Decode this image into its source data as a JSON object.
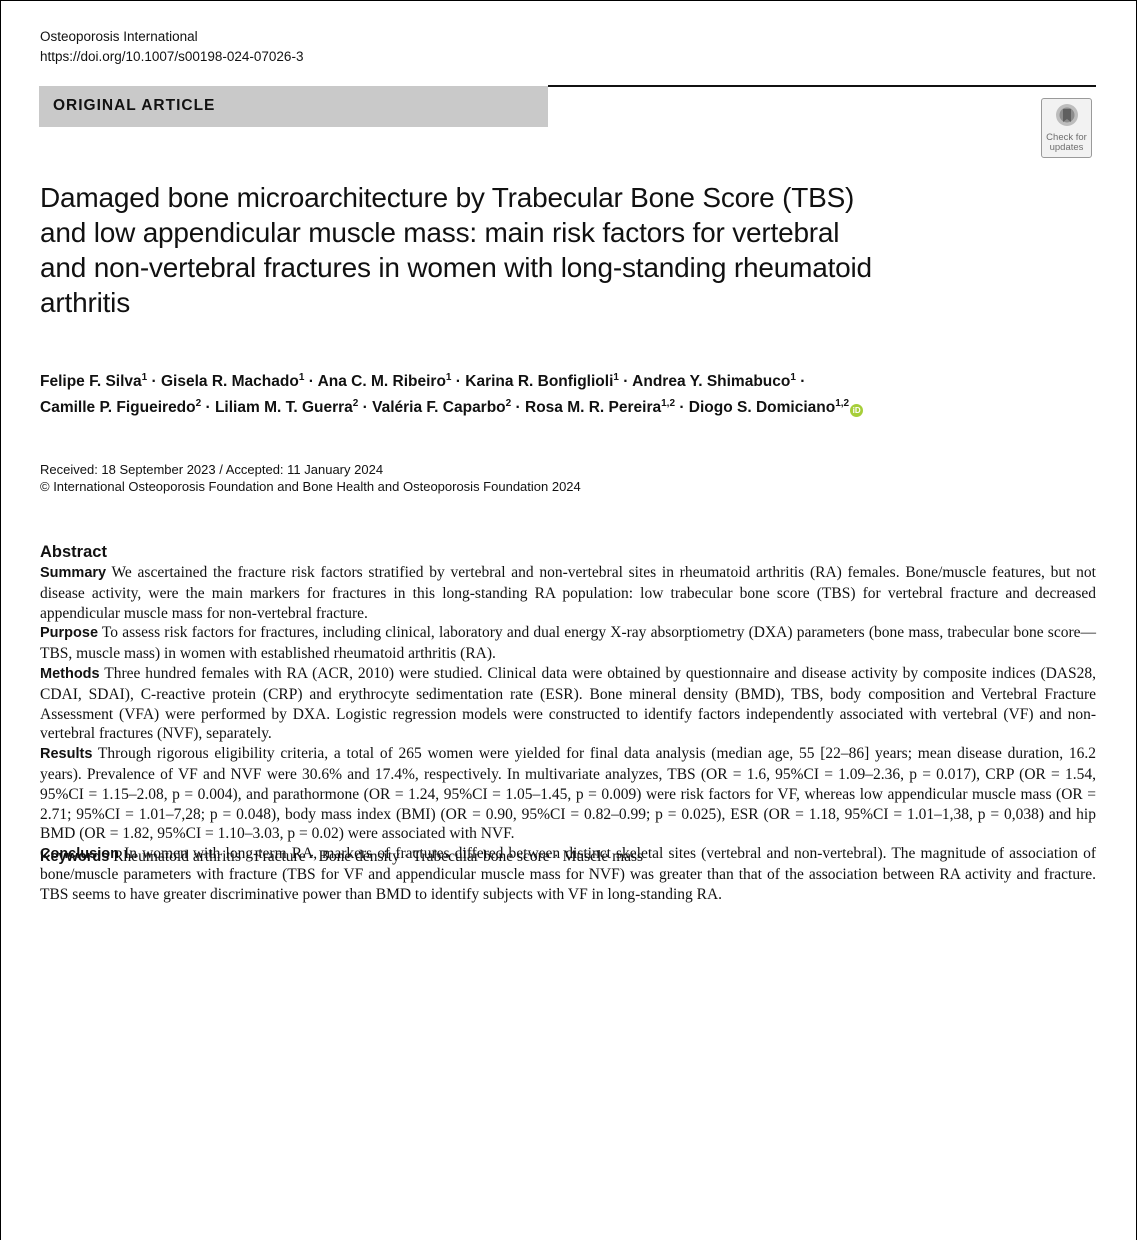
{
  "journal": {
    "name": "Osteoporosis International",
    "doi": "https://doi.org/10.1007/s00198-024-07026-3"
  },
  "article_type": "ORIGINAL ARTICLE",
  "check_updates": {
    "line1": "Check for",
    "line2": "updates",
    "icon": "bookmark-icon"
  },
  "title_lines": [
    "Damaged bone microarchitecture by Trabecular Bone Score (TBS)",
    "and low appendicular muscle mass: main risk factors for vertebral",
    "and non-vertebral fractures in women with long-standing rheumatoid",
    "arthritis"
  ],
  "authors": {
    "line1": [
      {
        "name": "Felipe F. Silva",
        "aff": "1"
      },
      {
        "name": "Gisela R. Machado",
        "aff": "1"
      },
      {
        "name": "Ana C. M. Ribeiro",
        "aff": "1"
      },
      {
        "name": "Karina R. Bonfiglioli",
        "aff": "1"
      },
      {
        "name": "Andrea Y. Shimabuco",
        "aff": "1"
      }
    ],
    "line2": [
      {
        "name": "Camille P. Figueiredo",
        "aff": "2"
      },
      {
        "name": "Liliam M. T. Guerra",
        "aff": "2"
      },
      {
        "name": "Valéria F. Caparbo",
        "aff": "2"
      },
      {
        "name": "Rosa M. R. Pereira",
        "aff": "1,2"
      },
      {
        "name": "Diogo S. Domiciano",
        "aff": "1,2"
      }
    ],
    "separator": " · ",
    "orcid_label": "iD"
  },
  "dates": {
    "received": "Received: 18 September 2023 / Accepted: 11 January 2024",
    "copyright": "© International Osteoporosis Foundation and Bone Health and Osteoporosis Foundation 2024"
  },
  "abstract": {
    "heading": "Abstract",
    "sections": [
      {
        "label": "Summary",
        "text": "We ascertained the fracture risk factors stratified by vertebral and non-vertebral sites in rheumatoid arthritis (RA) females. Bone/muscle features, but not disease activity, were the main markers for fractures in this long-standing RA population: low trabecular bone score (TBS) for vertebral fracture and decreased appendicular muscle mass for non-vertebral fracture."
      },
      {
        "label": "Purpose",
        "text": "To assess risk factors for fractures, including clinical, laboratory and dual energy X-ray absorptiometry (DXA) parameters (bone mass, trabecular bone score—TBS, muscle mass) in women with established rheumatoid arthritis (RA)."
      },
      {
        "label": "Methods",
        "text": "Three hundred females with RA (ACR, 2010) were studied. Clinical data were obtained by questionnaire and disease activity by composite indices (DAS28, CDAI, SDAI), C-reactive protein (CRP) and erythrocyte sedimentation rate (ESR). Bone mineral density (BMD), TBS, body composition and Vertebral Fracture Assessment (VFA) were performed by DXA. Logistic regression models were constructed to identify factors independently associated with vertebral (VF) and non-vertebral fractures (NVF), separately."
      },
      {
        "label": "Results",
        "text": "Through rigorous eligibility criteria, a total of 265 women were yielded for final data analysis (median age, 55 [22–86] years; mean disease duration, 16.2 years). Prevalence of VF and NVF were 30.6% and 17.4%, respectively. In multivariate analyzes, TBS (OR = 1.6, 95%CI = 1.09–2.36, p = 0.017), CRP (OR = 1.54, 95%CI = 1.15–2.08, p = 0.004), and parathormone (OR = 1.24, 95%CI = 1.05–1.45, p = 0.009) were risk factors for VF, whereas low appendicular muscle mass (OR = 2.71; 95%CI = 1.01–7,28; p = 0.048), body mass index (BMI) (OR = 0.90, 95%CI = 0.82–0.99; p = 0.025), ESR (OR = 1.18, 95%CI = 1.01–1,38, p = 0,038) and hip BMD (OR = 1.82, 95%CI = 1.10–3.03, p = 0.02) were associated with NVF."
      },
      {
        "label": "Conclusion",
        "text": "In women with long-term RA, markers of fractures differed between distinct skeletal sites (vertebral and non-vertebral). The magnitude of association of bone/muscle parameters with fracture (TBS for VF and appendicular muscle mass for NVF) was greater than that of the association between RA activity and fracture. TBS seems to have greater discriminative power than BMD to identify subjects with VF in long-standing RA."
      }
    ]
  },
  "keywords": {
    "label": "Keywords",
    "text": "Rheumatoid arthritis · Fracture · Bone density · Trabecular bone score · Muscle mass"
  }
}
